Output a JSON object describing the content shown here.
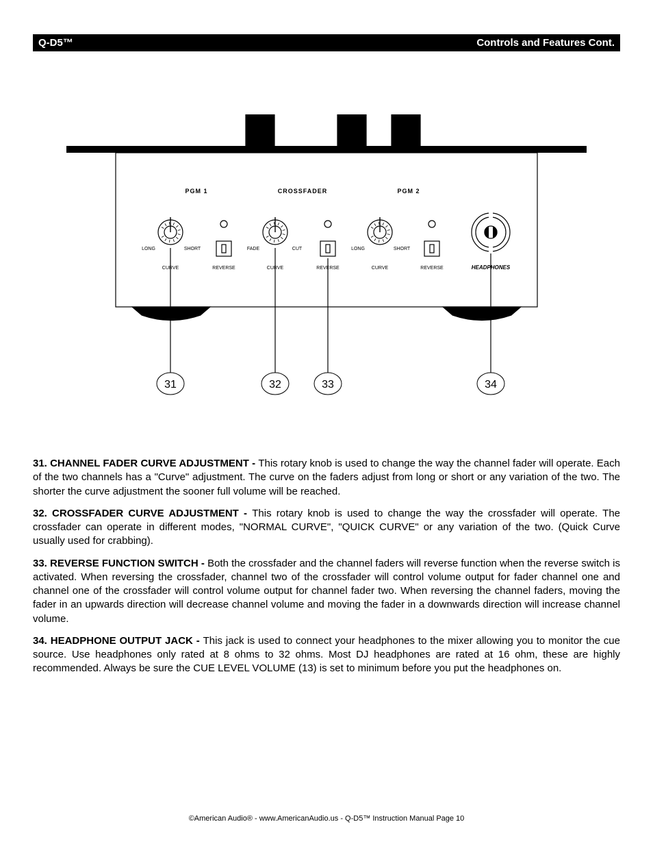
{
  "header": {
    "left": "Q-D5™",
    "right": "Controls and Features Cont."
  },
  "diagram": {
    "labels": {
      "pgm1": "PGM 1",
      "crossfader": "CROSSFADER",
      "pgm2": "PGM 2",
      "long": "LONG",
      "short": "SHORT",
      "fade": "FADE",
      "cut": "CUT",
      "curve": "CURVE",
      "reverse": "REVERSE",
      "headphones": "HEADPHONES"
    },
    "callouts": [
      "31",
      "32",
      "33",
      "34"
    ],
    "knob": {
      "outer_r": 18,
      "tick_r1": 11,
      "tick_r2": 15,
      "tick_count": 12,
      "tick_arc": [
        210,
        510
      ]
    },
    "colors": {
      "stroke": "#000000",
      "bg": "#ffffff"
    }
  },
  "items": {
    "31": {
      "title": "31. CHANNEL FADER CURVE ADJUSTMENT - ",
      "text": "This rotary knob is used to change the way the channel fader will operate. Each of the two channels has a \"Curve\" adjustment. The curve on the faders adjust from long or short or any variation of the two. The shorter the curve adjustment the sooner full volume will be reached."
    },
    "32": {
      "title": "32. CROSSFADER CURVE ADJUSTMENT - ",
      "text": "This rotary knob is used to change the way the crossfader will operate. The crossfader can operate in different modes, \"NORMAL CURVE\", \"QUICK CURVE\" or any variation of the two. (Quick Curve usually used for crabbing)."
    },
    "33": {
      "title": "33. REVERSE FUNCTION SWITCH - ",
      "text": "Both the crossfader and the channel faders will reverse function when the reverse switch is activated. When reversing the crossfader, channel two of the crossfader will control volume output for fader channel one and channel one of the crossfader will control volume output for channel fader two. When reversing the channel faders, moving the fader in an upwards direction will decrease channel volume and moving the fader in a downwards direction will increase channel volume."
    },
    "34": {
      "title": "34. HEADPHONE OUTPUT JACK - ",
      "text": "This jack is used to connect your headphones to the mixer allowing you to monitor the cue source. Use headphones only rated at 8 ohms to 32 ohms. Most DJ headphones are rated at 16 ohm, these are highly recommended. Always be sure the CUE LEVEL VOLUME (13) is set to minimum before you put the headphones on."
    }
  },
  "footer": {
    "text": "©American Audio®   -   www.AmericanAudio.us   -   Q-D5™ Instruction Manual Page 10"
  }
}
